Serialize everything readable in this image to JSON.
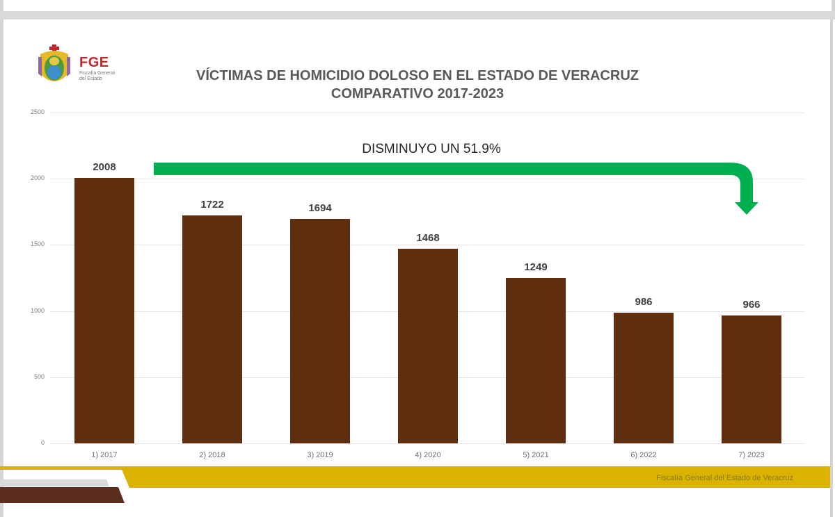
{
  "header": {
    "org_short": "FGE",
    "org_name_line1": "Fiscalía General",
    "org_name_line2": "del Estado",
    "title_line1": "VÍCTIMAS DE HOMICIDIO DOLOSO EN EL ESTADO DE VERACRUZ",
    "title_line2": "COMPARATIVO 2017-2023"
  },
  "annotation": {
    "text": "DISMINUYO UN 51.9%",
    "arrow_color": "#00b050"
  },
  "footer": {
    "text": "Fiscalía General del Estado de Veracruz",
    "band_color": "#d9b300",
    "accent_color": "#5b2e1f"
  },
  "colors": {
    "bar": "#5f2e0e",
    "gridline": "#e4e4e4"
  },
  "chart_data": {
    "type": "bar",
    "title": "VÍCTIMAS DE HOMICIDIO DOLOSO EN EL ESTADO DE VERACRUZ COMPARATIVO 2017-2023",
    "categories": [
      "1) 2017",
      "2) 2018",
      "3) 2019",
      "4) 2020",
      "5) 2021",
      "6) 2022",
      "7) 2023"
    ],
    "values": [
      2008,
      1722,
      1694,
      1468,
      1249,
      986,
      966
    ],
    "xlabel": "",
    "ylabel": "",
    "ylim": [
      0,
      2500
    ],
    "yticks": [
      "2500",
      "2000",
      "1500",
      "1000",
      "500",
      "0"
    ],
    "grid": true,
    "legend": "none",
    "annotations": [
      "DISMINUYO UN 51.9%"
    ]
  }
}
